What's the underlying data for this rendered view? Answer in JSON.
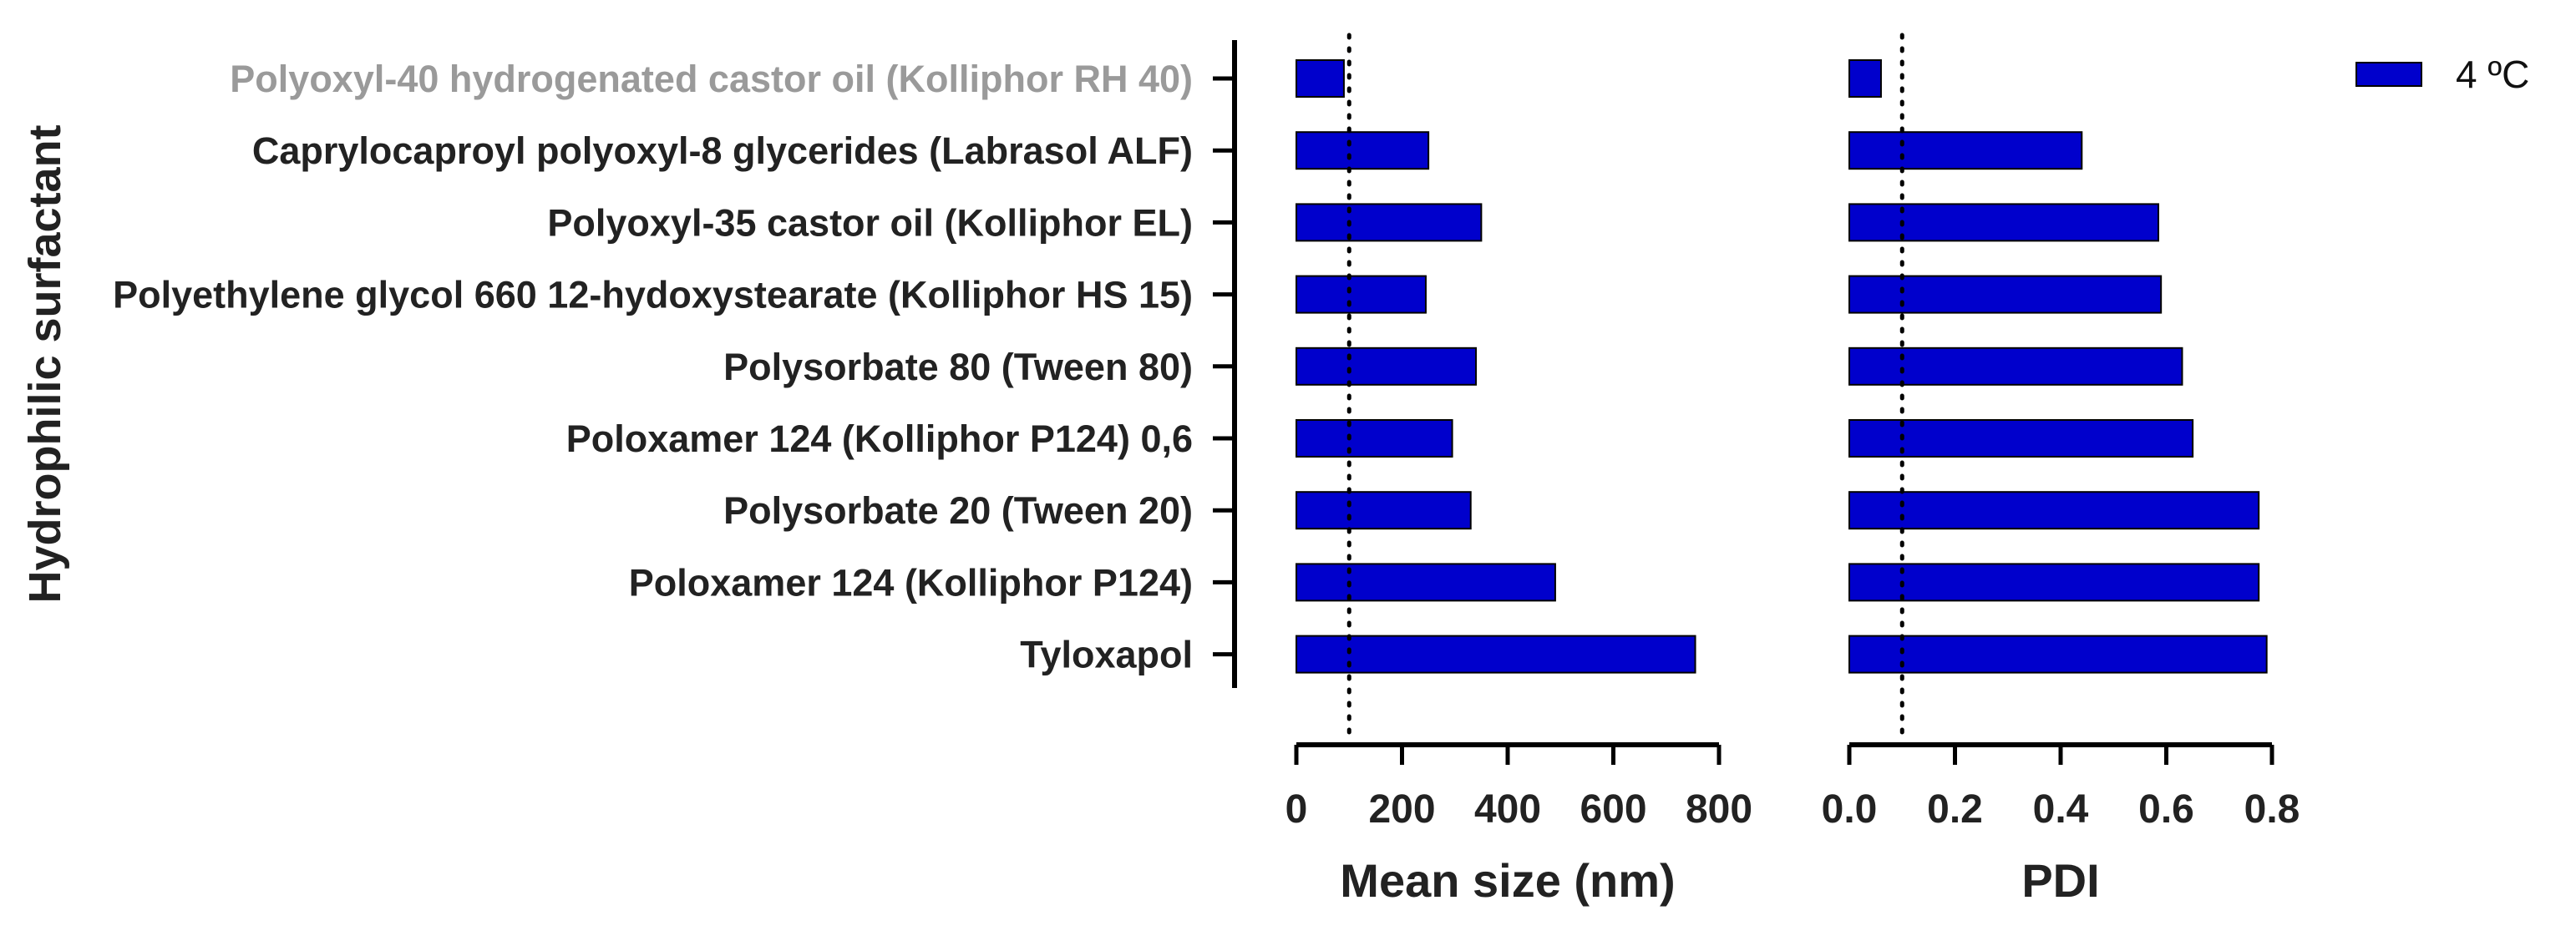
{
  "chart_data": [
    {
      "type": "bar",
      "orientation": "horizontal",
      "ylabel": "Hydrophilic surfactant",
      "xlabel": "Mean size (nm)",
      "categories": [
        "Polyoxyl-40 hydrogenated castor oil (Kolliphor RH 40)",
        "Caprylocaproyl polyoxyl-8 glycerides (Labrasol ALF)",
        "Polyoxyl-35 castor oil (Kolliphor EL)",
        "Polyethylene glycol 660 12-hydoxystearate (Kolliphor HS 15)",
        "Polysorbate 80 (Tween 80)",
        "Poloxamer 124 (Kolliphor P124) 0,6",
        "Polysorbate 20 (Tween 20)",
        "Poloxamer 124 (Kolliphor P124)",
        "Tyloxapol"
      ],
      "category_colors": [
        "#9a9a9a",
        "#222222",
        "#222222",
        "#222222",
        "#222222",
        "#222222",
        "#222222",
        "#222222",
        "#222222"
      ],
      "series": [
        {
          "name": "4 ºC",
          "values": [
            90,
            250,
            350,
            245,
            340,
            295,
            330,
            490,
            755
          ]
        }
      ],
      "xlim": [
        0,
        800
      ],
      "xticks": [
        "0",
        "200",
        "400",
        "600",
        "800"
      ],
      "xtick_values": [
        0,
        200,
        400,
        600,
        800
      ],
      "reference_line": 100,
      "bar_color": "#0000cc"
    },
    {
      "type": "bar",
      "orientation": "horizontal",
      "xlabel": "PDI",
      "series": [
        {
          "name": "4 ºC",
          "values": [
            0.06,
            0.44,
            0.585,
            0.59,
            0.63,
            0.65,
            0.775,
            0.775,
            0.79
          ]
        }
      ],
      "xlim": [
        0,
        0.8
      ],
      "xticks": [
        "0.0",
        "0.2",
        "0.4",
        "0.6",
        "0.8"
      ],
      "xtick_values": [
        0,
        0.2,
        0.4,
        0.6,
        0.8
      ],
      "reference_line": 0.1,
      "bar_color": "#0000cc"
    }
  ],
  "legend": {
    "label": "4 ºC",
    "color": "#0000cc",
    "position": "top-right"
  }
}
